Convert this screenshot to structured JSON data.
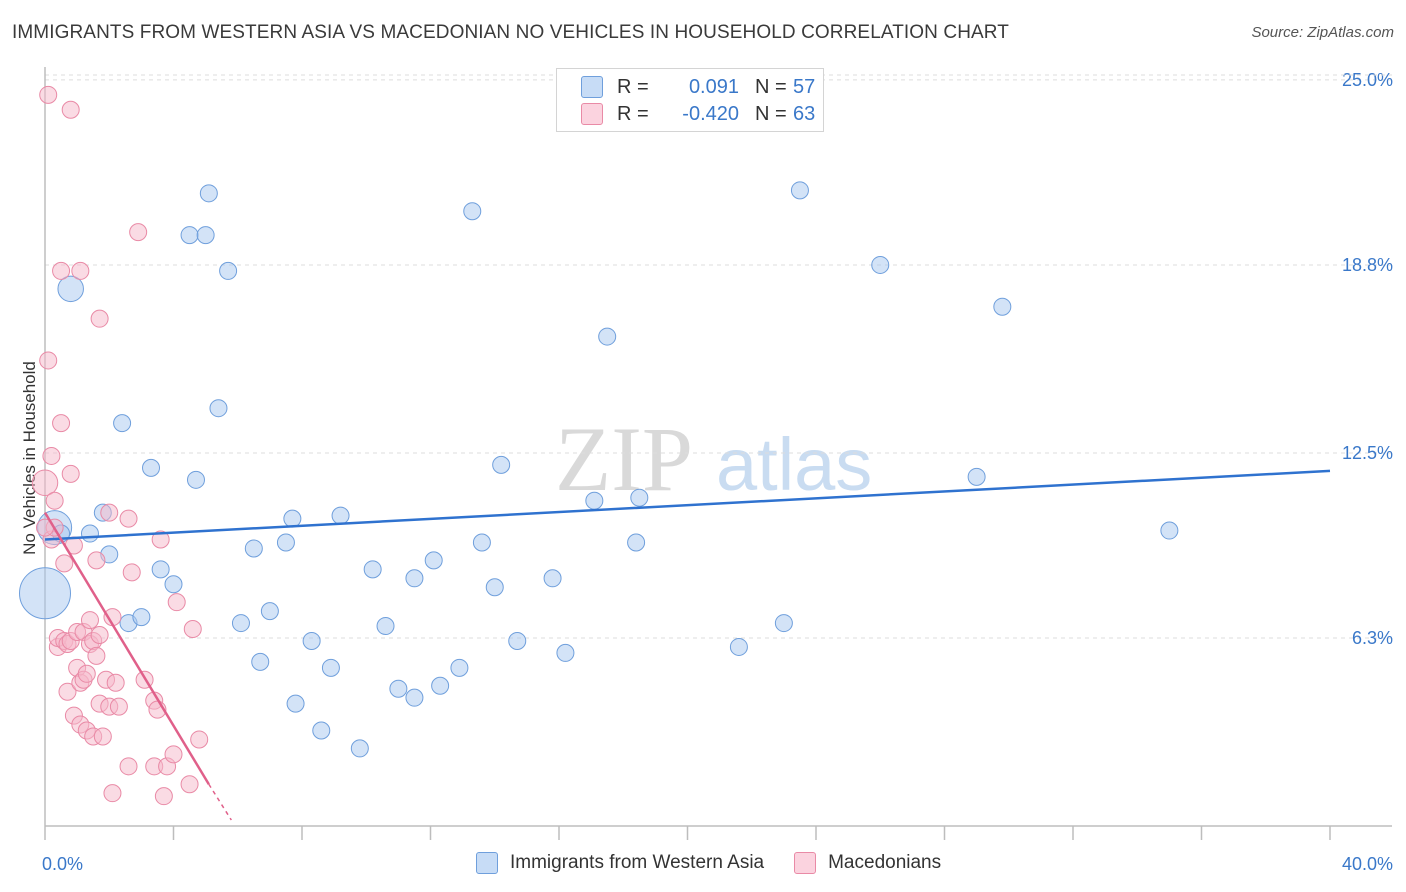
{
  "header": {
    "title": "IMMIGRANTS FROM WESTERN ASIA VS MACEDONIAN NO VEHICLES IN HOUSEHOLD CORRELATION CHART",
    "source": "Source: ZipAtlas.com"
  },
  "watermark": {
    "part1": "ZIP",
    "part2": "atlas"
  },
  "legend_top": {
    "rows": [
      {
        "r_label": "R =",
        "r_value": "0.091",
        "n_label": "N =",
        "n_value": "57",
        "color": "#a8c8f0"
      },
      {
        "r_label": "R =",
        "r_value": "-0.420",
        "n_label": "N =",
        "n_value": "63",
        "color": "#f6b8c9"
      }
    ]
  },
  "legend_bottom": {
    "items": [
      {
        "label": "Immigrants from Western Asia",
        "color": "#a8c8f0"
      },
      {
        "label": "Macedonians",
        "color": "#f6b8c9"
      }
    ]
  },
  "colors": {
    "blue_fill": "#a8c8f0",
    "blue_stroke": "#6f9fdc",
    "blue_line": "#2f72cf",
    "pink_fill": "#f6b8c9",
    "pink_stroke": "#e98aa6",
    "pink_line": "#e0608a",
    "axis_label": "#3a78c9",
    "grid": "#dddddd"
  },
  "chart_data": {
    "type": "scatter",
    "title": "IMMIGRANTS FROM WESTERN ASIA VS MACEDONIAN NO VEHICLES IN HOUSEHOLD CORRELATION CHART",
    "xlabel": "",
    "ylabel": "No Vehicles in Household",
    "xlim": [
      0,
      40
    ],
    "ylim": [
      0,
      25.6
    ],
    "x_tick_labels": [
      "0.0%",
      "40.0%"
    ],
    "y_ticks": [
      6.3,
      12.5,
      18.8,
      25.0
    ],
    "y_tick_labels": [
      "6.3%",
      "12.5%",
      "18.8%",
      "25.0%"
    ],
    "grid": true,
    "series": [
      {
        "name": "Immigrants from Western Asia",
        "points": [
          [
            0.0,
            7.8,
            3
          ],
          [
            0.3,
            10.0,
            2
          ],
          [
            0.8,
            18.0,
            1.5
          ],
          [
            0.5,
            9.8,
            1
          ],
          [
            1.4,
            9.8,
            1
          ],
          [
            1.8,
            10.5,
            1
          ],
          [
            2.0,
            9.1,
            1
          ],
          [
            2.4,
            13.5,
            1
          ],
          [
            2.6,
            6.8,
            1
          ],
          [
            3.0,
            7.0,
            1
          ],
          [
            3.3,
            12.0,
            1
          ],
          [
            3.6,
            8.6,
            1
          ],
          [
            4.0,
            8.1,
            1
          ],
          [
            4.5,
            19.8,
            1
          ],
          [
            4.7,
            11.6,
            1
          ],
          [
            5.0,
            19.8,
            1
          ],
          [
            5.1,
            21.2,
            1
          ],
          [
            5.4,
            14.0,
            1
          ],
          [
            5.7,
            18.6,
            1
          ],
          [
            6.1,
            6.8,
            1
          ],
          [
            6.5,
            9.3,
            1
          ],
          [
            6.7,
            5.5,
            1
          ],
          [
            7.0,
            7.2,
            1
          ],
          [
            7.5,
            9.5,
            1
          ],
          [
            7.7,
            10.3,
            1
          ],
          [
            7.8,
            4.1,
            1
          ],
          [
            8.3,
            6.2,
            1
          ],
          [
            8.6,
            3.2,
            1
          ],
          [
            8.9,
            5.3,
            1
          ],
          [
            9.2,
            10.4,
            1
          ],
          [
            9.8,
            2.6,
            1
          ],
          [
            10.2,
            8.6,
            1
          ],
          [
            10.6,
            6.7,
            1
          ],
          [
            11.0,
            4.6,
            1
          ],
          [
            11.5,
            4.3,
            1
          ],
          [
            11.5,
            8.3,
            1
          ],
          [
            12.1,
            8.9,
            1
          ],
          [
            12.3,
            4.7,
            1
          ],
          [
            12.9,
            5.3,
            1
          ],
          [
            13.3,
            20.6,
            1
          ],
          [
            13.6,
            9.5,
            1
          ],
          [
            14.0,
            8.0,
            1
          ],
          [
            14.2,
            12.1,
            1
          ],
          [
            14.7,
            6.2,
            1
          ],
          [
            15.8,
            8.3,
            1
          ],
          [
            16.2,
            5.8,
            1
          ],
          [
            17.1,
            10.9,
            1
          ],
          [
            17.5,
            16.4,
            1
          ],
          [
            18.4,
            9.5,
            1
          ],
          [
            18.5,
            11.0,
            1
          ],
          [
            21.6,
            6.0,
            1
          ],
          [
            23.0,
            6.8,
            1
          ],
          [
            23.5,
            21.3,
            1
          ],
          [
            26.0,
            18.8,
            1
          ],
          [
            29.0,
            11.7,
            1
          ],
          [
            29.8,
            17.4,
            1
          ],
          [
            35.0,
            9.9,
            1
          ]
        ]
      },
      {
        "name": "Macedonians",
        "points": [
          [
            0.0,
            11.5,
            1.5
          ],
          [
            0.1,
            15.6,
            1
          ],
          [
            0.1,
            24.5,
            1
          ],
          [
            0.2,
            9.6,
            1
          ],
          [
            0.2,
            12.4,
            1
          ],
          [
            0.3,
            10.0,
            1
          ],
          [
            0.3,
            10.9,
            1
          ],
          [
            0.4,
            6.0,
            1
          ],
          [
            0.4,
            6.3,
            1
          ],
          [
            0.5,
            13.5,
            1
          ],
          [
            0.5,
            18.6,
            1
          ],
          [
            0.6,
            8.8,
            1
          ],
          [
            0.6,
            6.2,
            1
          ],
          [
            0.7,
            6.1,
            1
          ],
          [
            0.7,
            4.5,
            1
          ],
          [
            0.8,
            6.2,
            1
          ],
          [
            0.8,
            11.8,
            1
          ],
          [
            0.8,
            24.0,
            1
          ],
          [
            0.9,
            9.4,
            1
          ],
          [
            0.9,
            3.7,
            1
          ],
          [
            1.0,
            5.3,
            1
          ],
          [
            1.0,
            6.5,
            1
          ],
          [
            1.1,
            4.8,
            1
          ],
          [
            1.1,
            3.4,
            1
          ],
          [
            1.1,
            18.6,
            1
          ],
          [
            1.2,
            6.5,
            1
          ],
          [
            1.2,
            4.9,
            1
          ],
          [
            1.3,
            3.2,
            1
          ],
          [
            1.3,
            5.1,
            1
          ],
          [
            1.4,
            6.9,
            1
          ],
          [
            1.4,
            6.1,
            1
          ],
          [
            1.5,
            3.0,
            1
          ],
          [
            1.5,
            6.2,
            1
          ],
          [
            1.6,
            5.7,
            1
          ],
          [
            1.6,
            8.9,
            1
          ],
          [
            1.7,
            4.1,
            1
          ],
          [
            1.7,
            6.4,
            1
          ],
          [
            1.7,
            17.0,
            1
          ],
          [
            1.8,
            3.0,
            1
          ],
          [
            1.9,
            4.9,
            1
          ],
          [
            2.0,
            4.0,
            1
          ],
          [
            2.0,
            10.5,
            1
          ],
          [
            2.1,
            7.0,
            1
          ],
          [
            2.1,
            1.1,
            1
          ],
          [
            2.2,
            4.8,
            1
          ],
          [
            2.3,
            4.0,
            1
          ],
          [
            2.6,
            2.0,
            1
          ],
          [
            2.6,
            10.3,
            1
          ],
          [
            2.7,
            8.5,
            1
          ],
          [
            2.9,
            19.9,
            1
          ],
          [
            3.1,
            4.9,
            1
          ],
          [
            3.4,
            2.0,
            1
          ],
          [
            3.4,
            4.2,
            1
          ],
          [
            3.5,
            3.9,
            1
          ],
          [
            3.6,
            9.6,
            1
          ],
          [
            3.7,
            1.0,
            1
          ],
          [
            3.8,
            2.0,
            1
          ],
          [
            4.0,
            2.4,
            1
          ],
          [
            4.1,
            7.5,
            1
          ],
          [
            4.5,
            1.4,
            1
          ],
          [
            4.6,
            6.6,
            1
          ],
          [
            4.8,
            2.9,
            1
          ],
          [
            0.0,
            10.0,
            1
          ]
        ]
      }
    ],
    "trendlines": [
      {
        "series": "Immigrants from Western Asia",
        "x": [
          0,
          40
        ],
        "y": [
          9.6,
          11.9
        ]
      },
      {
        "series": "Macedonians",
        "x": [
          0,
          5.1
        ],
        "y": [
          10.5,
          1.4
        ],
        "dashed_extension_to": [
          5.8,
          0.2
        ]
      }
    ]
  }
}
